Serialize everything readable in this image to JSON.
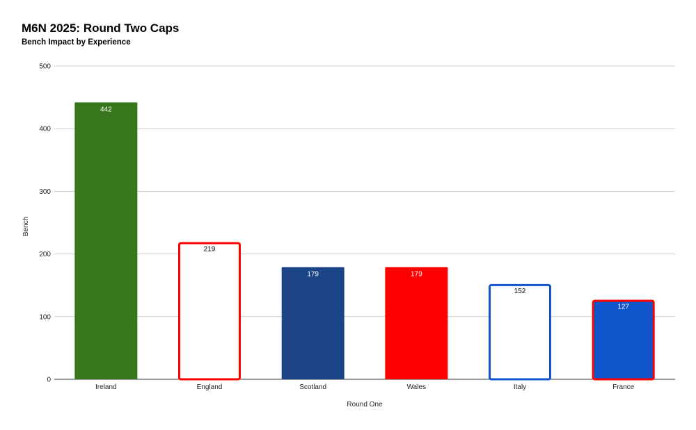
{
  "chart_data": {
    "type": "bar",
    "title": "M6N 2025: Round Two Caps",
    "subtitle": "Bench Impact by Experience",
    "xlabel": "Round One",
    "ylabel": "Bench",
    "ylim": [
      0,
      500
    ],
    "yticks": [
      0,
      100,
      200,
      300,
      400,
      500
    ],
    "grid": true,
    "categories": [
      "Ireland",
      "England",
      "Scotland",
      "Wales",
      "Italy",
      "France"
    ],
    "values": [
      442,
      219,
      179,
      179,
      152,
      127
    ],
    "bar_styles": [
      {
        "fill": "#38761d",
        "stroke": "none",
        "label_color": "#ffffff"
      },
      {
        "fill": "#ffffff",
        "stroke": "#ff0000",
        "label_color": "#000000"
      },
      {
        "fill": "#1c4587",
        "stroke": "none",
        "label_color": "#ffffff"
      },
      {
        "fill": "#ff0000",
        "stroke": "none",
        "label_color": "#ffffff"
      },
      {
        "fill": "#ffffff",
        "stroke": "#1155cc",
        "label_color": "#000000"
      },
      {
        "fill": "#1155cc",
        "stroke": "#ff0000",
        "label_color": "#ffffff"
      }
    ]
  }
}
